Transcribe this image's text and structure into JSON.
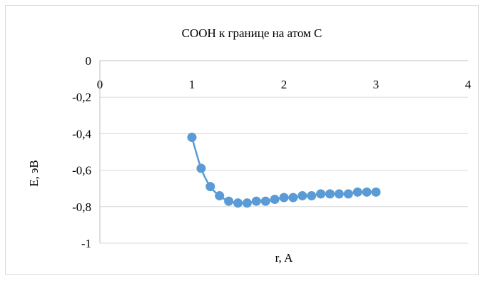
{
  "chart_data": {
    "type": "scatter",
    "title": "COOH к границе на атом C",
    "xlabel": "r, A",
    "ylabel": "E, эВ",
    "xlim": [
      0,
      4
    ],
    "ylim": [
      -1,
      0
    ],
    "x_ticks": [
      0,
      1,
      2,
      3,
      4
    ],
    "x_tick_labels": [
      "0",
      "1",
      "2",
      "3",
      "4"
    ],
    "y_ticks": [
      0,
      -0.2,
      -0.4,
      -0.6,
      -0.8,
      -1
    ],
    "y_tick_labels": [
      "0",
      "-0,2",
      "-0,4",
      "-0,6",
      "-0,8",
      "-1"
    ],
    "grid": "horizontal",
    "legend": "none",
    "series": [
      {
        "color": "#5b9bd5",
        "marker": "circle",
        "line": "smooth",
        "x": [
          1.0,
          1.1,
          1.2,
          1.3,
          1.4,
          1.5,
          1.6,
          1.7,
          1.8,
          1.9,
          2.0,
          2.1,
          2.2,
          2.3,
          2.4,
          2.5,
          2.6,
          2.7,
          2.8,
          2.9,
          3.0
        ],
        "y": [
          -0.42,
          -0.59,
          -0.69,
          -0.74,
          -0.77,
          -0.78,
          -0.78,
          -0.77,
          -0.77,
          -0.76,
          -0.75,
          -0.75,
          -0.74,
          -0.74,
          -0.73,
          -0.73,
          -0.73,
          -0.73,
          -0.72,
          -0.72,
          -0.72
        ]
      }
    ]
  }
}
